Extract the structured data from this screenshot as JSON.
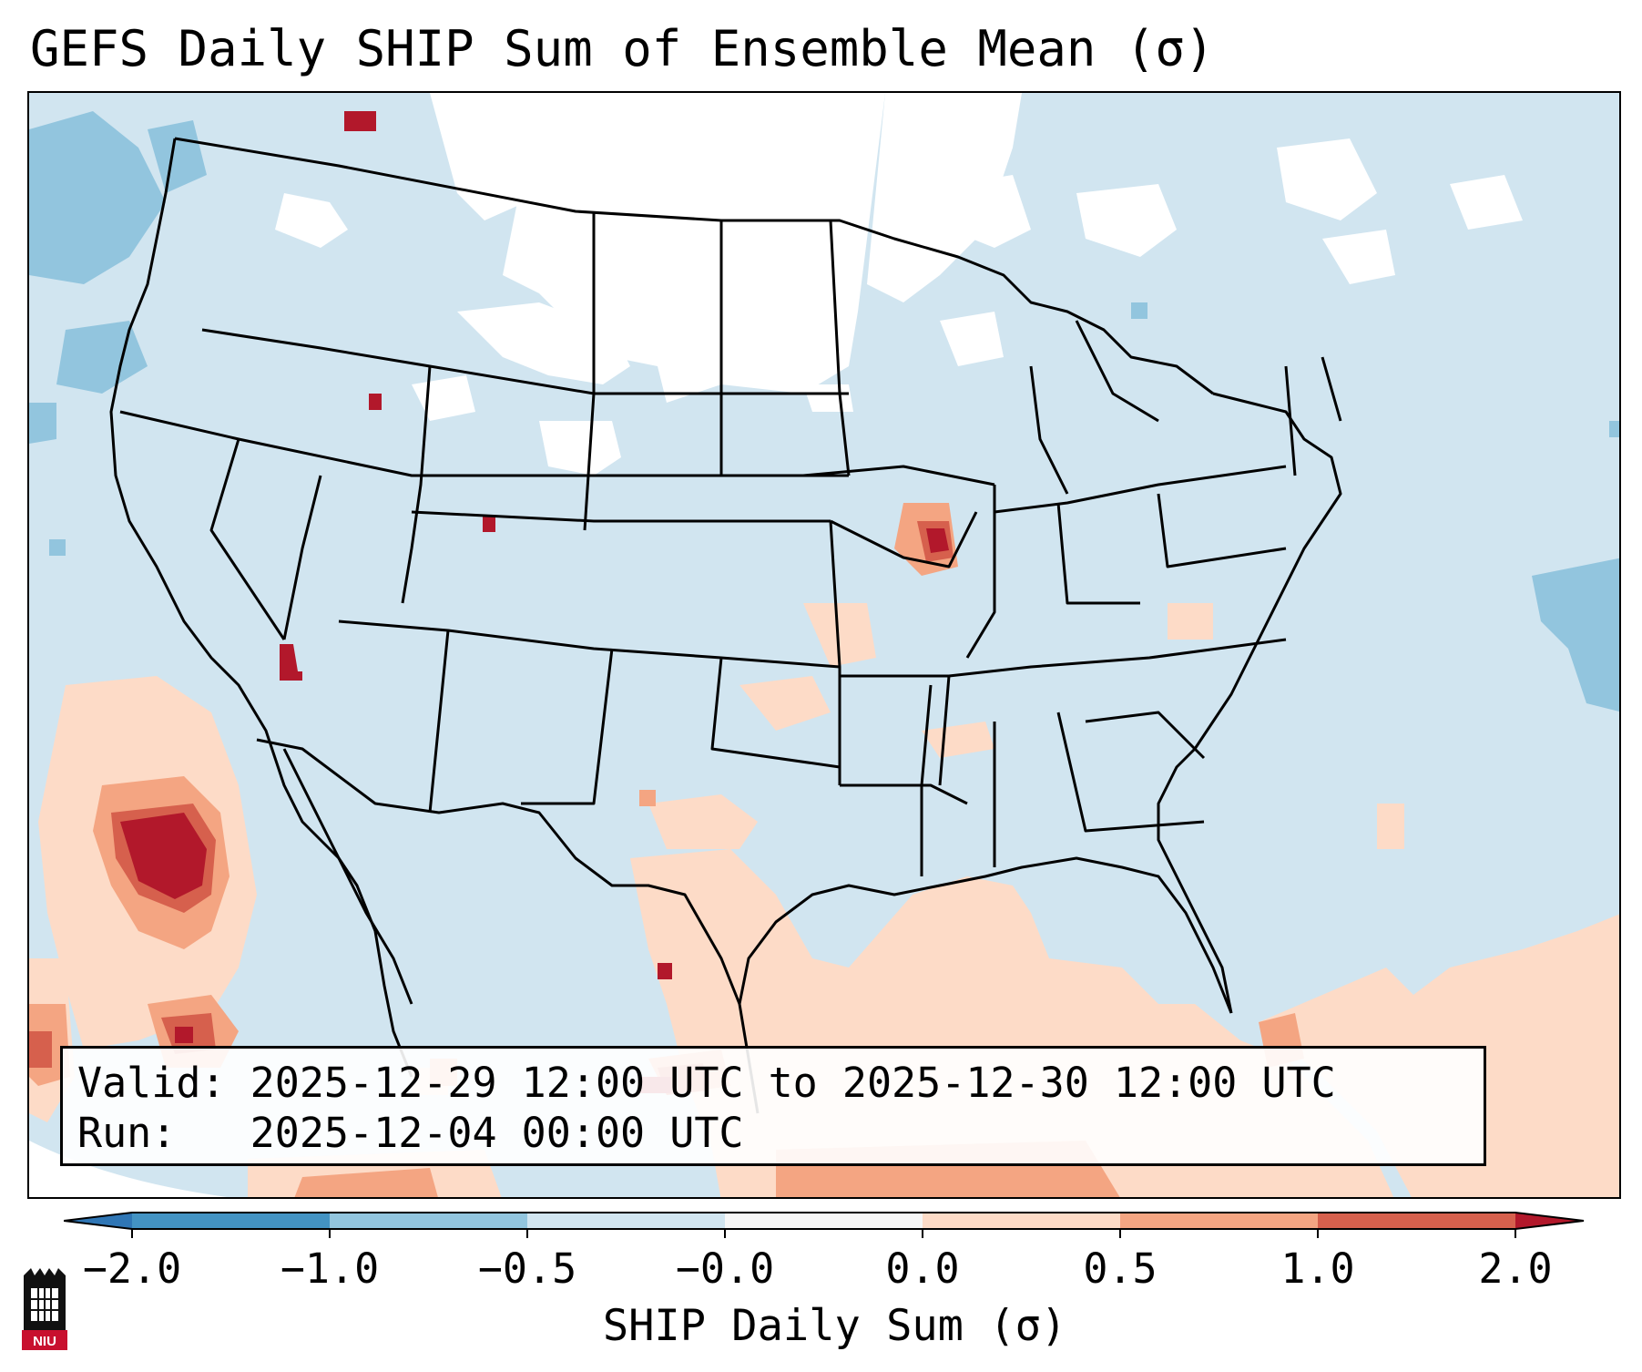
{
  "title": "GEFS Daily SHIP Sum of Ensemble Mean (σ)",
  "info": {
    "valid_label": "Valid:",
    "valid_value": "2025-12-29 12:00 UTC to 2025-12-30 12:00 UTC",
    "run_label": "Run:",
    "run_value": "2025-12-04 00:00 UTC"
  },
  "colorbar": {
    "label": "SHIP Daily Sum (σ)",
    "ticks": [
      "−2.0",
      "−1.0",
      "−0.5",
      "−0.0",
      "0.0",
      "0.5",
      "1.0",
      "2.0"
    ],
    "bins": [
      {
        "from": -3.0,
        "to": -2.0,
        "color": "#2f76b5"
      },
      {
        "from": -2.0,
        "to": -1.0,
        "color": "#4393c3"
      },
      {
        "from": -1.0,
        "to": -0.5,
        "color": "#92c5de"
      },
      {
        "from": -0.5,
        "to": -0.0,
        "color": "#d1e5f0"
      },
      {
        "from": -0.0,
        "to": 0.0,
        "color": "#f7f7f7"
      },
      {
        "from": 0.0,
        "to": 0.5,
        "color": "#fddbc7"
      },
      {
        "from": 0.5,
        "to": 1.0,
        "color": "#f4a582"
      },
      {
        "from": 1.0,
        "to": 2.0,
        "color": "#d6604d"
      },
      {
        "from": 2.0,
        "to": 3.0,
        "color": "#b2182b"
      }
    ]
  },
  "map": {
    "region": "Contiguous United States",
    "colors": {
      "neutral_negative": "#d1e5f0",
      "near_zero": "#ffffff",
      "moderate_negative": "#92c5de",
      "light_positive": "#fddbc7",
      "moderate_positive": "#f4a582",
      "high_positive": "#d6604d",
      "very_high_positive": "#b2182b",
      "borders": "#000000"
    }
  },
  "logo": {
    "text": "NIU",
    "color": "#c8102e"
  }
}
